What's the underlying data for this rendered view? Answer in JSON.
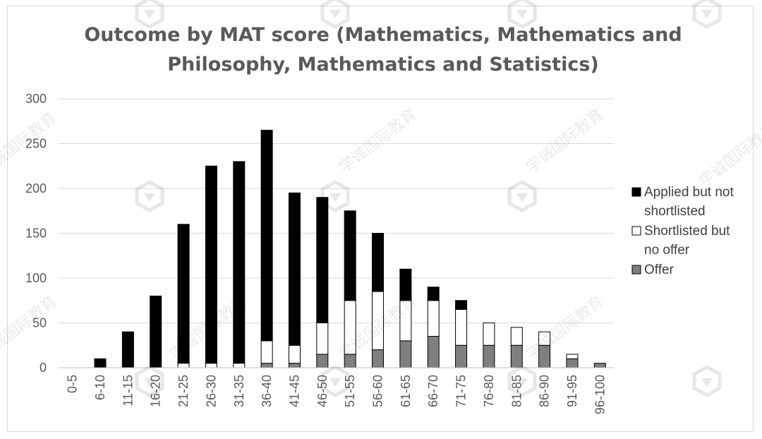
{
  "chart_data": {
    "type": "bar",
    "stacked": true,
    "title_lines": [
      "Outcome by MAT score (Mathematics, Mathematics and",
      "Philosophy, Mathematics and Statistics)"
    ],
    "categories": [
      "0-5",
      "6-10",
      "11-15",
      "16-20",
      "21-25",
      "26-30",
      "31-35",
      "36-40",
      "41-45",
      "46-50",
      "51-55",
      "56-60",
      "61-65",
      "66-70",
      "71-75",
      "76-80",
      "81-85",
      "86-90",
      "91-95",
      "96-100"
    ],
    "series": [
      {
        "name": "Offer",
        "color": "#7f7f7f",
        "values": [
          0,
          0,
          0,
          0,
          0,
          0,
          0,
          5,
          5,
          15,
          15,
          20,
          30,
          35,
          25,
          25,
          25,
          25,
          10,
          5
        ]
      },
      {
        "name": "Shortlisted but no offer",
        "color": "#ffffff",
        "values": [
          0,
          0,
          0,
          0,
          5,
          5,
          5,
          25,
          20,
          35,
          60,
          65,
          45,
          40,
          40,
          25,
          20,
          15,
          5,
          0
        ]
      },
      {
        "name": "Applied but not shortlisted",
        "color": "#000000",
        "values": [
          0,
          10,
          40,
          80,
          155,
          220,
          225,
          235,
          170,
          140,
          100,
          65,
          35,
          15,
          10,
          0,
          0,
          0,
          0,
          0
        ]
      }
    ],
    "legend_lines": [
      [
        "Applied but not",
        "shortlisted"
      ],
      [
        "Shortlisted but",
        "no offer"
      ],
      [
        "Offer"
      ]
    ],
    "y_ticks": [
      "0",
      "50",
      "100",
      "150",
      "200",
      "250",
      "300"
    ],
    "ylim": [
      0,
      300
    ],
    "grid": true,
    "legend_position": "right"
  },
  "watermark": {
    "text": "学诚国际教育"
  }
}
